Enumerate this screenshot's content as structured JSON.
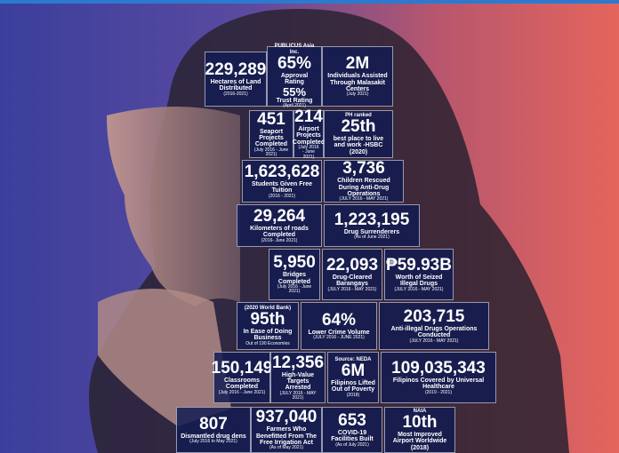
{
  "tiles": [
    {
      "figure": "229,289",
      "label": "Hectares of Land Distributed",
      "note": "(2016-2021)"
    },
    {
      "pre": "PUBLICUS Asia Inc.",
      "figure": "65%",
      "label": "Approval Rating",
      "figure2": "55%",
      "label2": "Trust Rating",
      "note": "(April 2021)"
    },
    {
      "figure": "2M",
      "label": "Individuals Assisted Through Malasakit Centers",
      "note": "(July 2021)"
    },
    {
      "figure": "451",
      "label": "Seaport Projects Completed",
      "note": "(July 2016 - June 2021)"
    },
    {
      "figure": "214",
      "label": "Airport Projects Completed",
      "note": "(July 2016 - June 2021)"
    },
    {
      "pre": "PH ranked",
      "figure": "25th",
      "label": "best place to live and work -HSBC (2020)"
    },
    {
      "figure": "1,623,628",
      "label": "Students Given Free Tuition",
      "note": "(2016 - 2021)"
    },
    {
      "figure": "3,736",
      "label": "Children Rescued During Anti-Drug Operations",
      "note": "(JULY 2016 - MAY 2021)"
    },
    {
      "figure": "29,264",
      "label": "Kilometers of roads Completed",
      "note": "(2016- June 2021)"
    },
    {
      "figure": "1,223,195",
      "label": "Drug Surrenderers",
      "note": "(As of June 2021)"
    },
    {
      "figure": "5,950",
      "label": "Bridges Completed",
      "note": "(July 2016 - June 2021)"
    },
    {
      "figure": "22,093",
      "label": "Drug-Cleared Barangays",
      "note": "(JULY 2016 - MAY 2021)"
    },
    {
      "figure": "₱59.93B",
      "label": "Worth of Seized Illegal Drugs",
      "note": "(JULY 2016 - MAY 2021)"
    },
    {
      "pre": "(2020 World Bank)",
      "figure": "95th",
      "label": "In Ease of Doing Business",
      "note": "Out of 190 Economies"
    },
    {
      "figure": "64%",
      "label": "Lower Crime Volume",
      "note": "(JULY 2016 - JUNE 2021)"
    },
    {
      "figure": "203,715",
      "label": "Anti-illegal Drugs Operations Conducted",
      "note": "(JULY 2016 - MAY 2021)"
    },
    {
      "figure": "150,149",
      "label": "Classrooms Completed",
      "note": "(July 2016 - June 2021)"
    },
    {
      "figure": "12,356",
      "label": "High-Value Targets Arrested",
      "note": "(JULY 2016 - MAY 2021)"
    },
    {
      "pre": "Source: NEDA",
      "figure": "6M",
      "label": "Filipinos Lifted Out of Poverty",
      "note": "(2018)"
    },
    {
      "figure": "109,035,343",
      "label": "Filipinos Covered by Universal Healthcare",
      "note": "(2019 - 2021)"
    },
    {
      "figure": "807",
      "label": "Dismantled drug dens",
      "note": "(July 2016 to May 2021)"
    },
    {
      "figure": "937,040",
      "label": "Farmers Who Benefitted From The Free Irrigation Act",
      "note": "(As of May 2021)"
    },
    {
      "figure": "653",
      "label": "COVID-19 Facilities Built",
      "note": "(As of July 2021)"
    },
    {
      "pre": "NAIA",
      "figure": "10th",
      "label": "Most Improved Airport Worldwide (2018)"
    }
  ]
}
